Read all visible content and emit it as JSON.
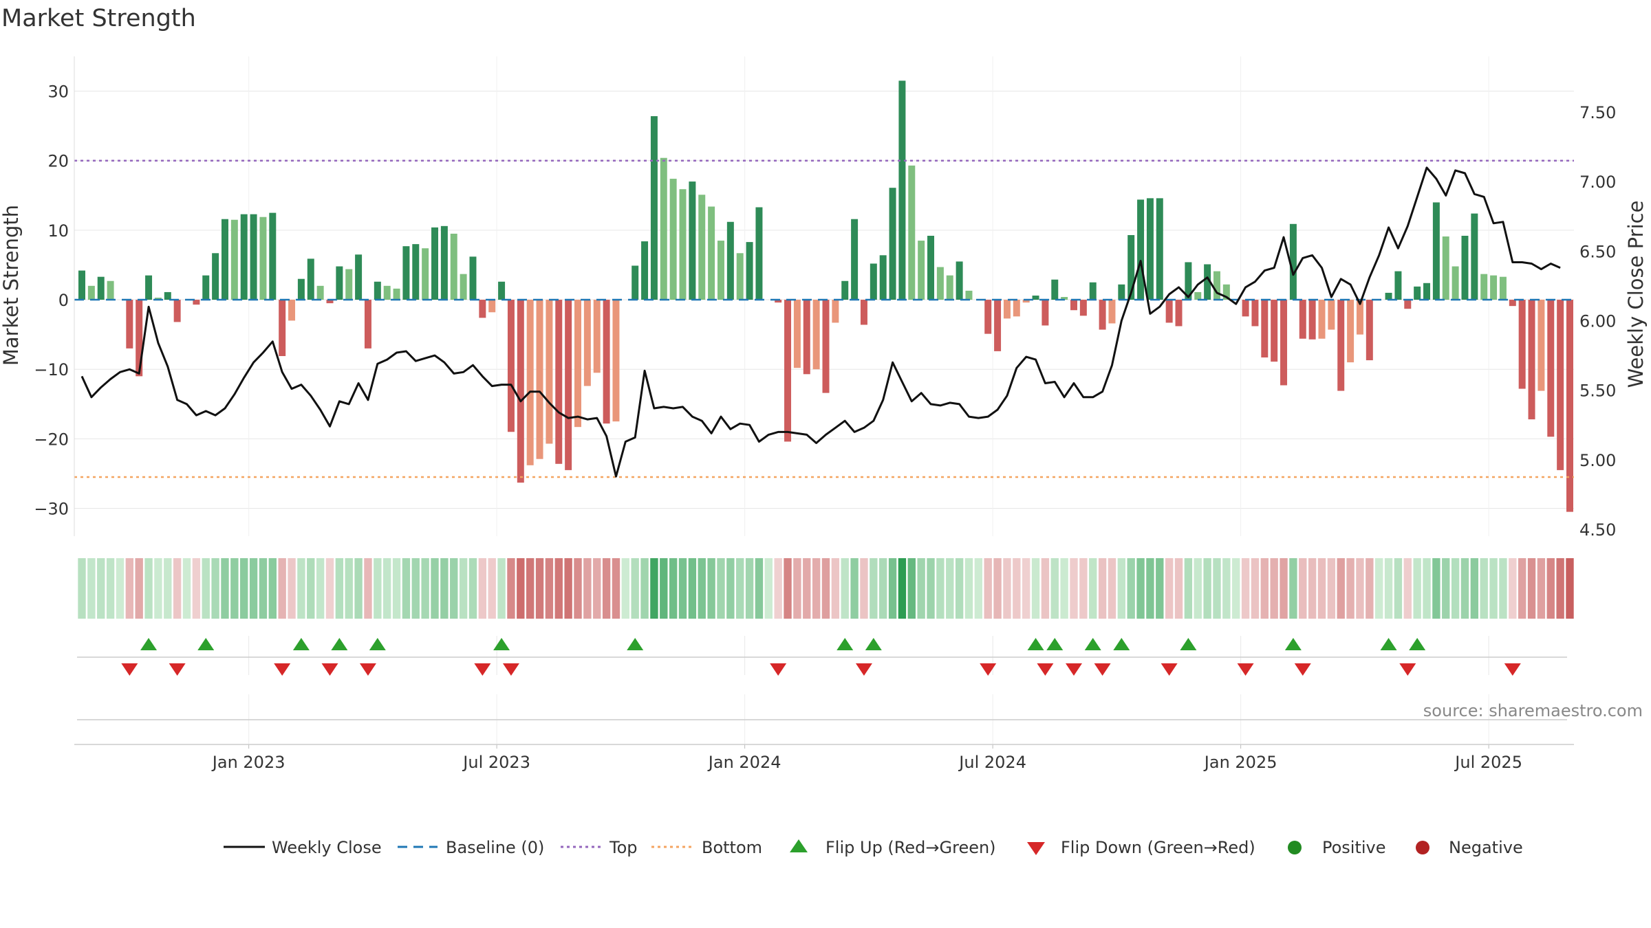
{
  "chart_data": {
    "type": "bar",
    "title": "Market Strength",
    "ylabel_left": "Market Strength",
    "ylabel_right": "Weekly Close Price",
    "y_left_range": [
      -34,
      35
    ],
    "y_left_ticks": [
      30,
      20,
      10,
      0,
      -10,
      -20,
      -30
    ],
    "y_left_tick_labels": [
      "30",
      "20",
      "10",
      "0",
      "−10",
      "−20",
      "−30"
    ],
    "y_right_range": [
      4.5,
      7.9
    ],
    "y_right_ticks": [
      7.5,
      7.0,
      6.5,
      6.0,
      5.5,
      5.0,
      4.5
    ],
    "y_right_tick_labels": [
      "7.50",
      "7.00",
      "6.50",
      "6.00",
      "5.50",
      "5.00",
      "4.50"
    ],
    "x_ticks": [
      {
        "week": 17.5,
        "label": "Jan 2023"
      },
      {
        "week": 43.5,
        "label": "Jul 2023"
      },
      {
        "week": 69.5,
        "label": "Jan 2024"
      },
      {
        "week": 95.5,
        "label": "Jul 2024"
      },
      {
        "week": 121.5,
        "label": "Jan 2025"
      },
      {
        "week": 147.5,
        "label": "Jul 2025"
      }
    ],
    "top_line": 20,
    "bottom_line": -25.5,
    "baseline": 0,
    "strength": [
      4.2,
      2,
      3.3,
      2.7,
      0,
      -7,
      -11,
      3.5,
      0.3,
      1.1,
      -3.2,
      0,
      -0.7,
      3.5,
      6.7,
      11.6,
      11.5,
      12.3,
      12.3,
      11.9,
      12.5,
      -8.1,
      -3,
      3,
      5.9,
      2,
      -0.5,
      4.8,
      4.4,
      6.5,
      -7,
      2.6,
      2,
      1.6,
      7.7,
      8,
      7.4,
      10.4,
      10.6,
      9.5,
      3.7,
      6.2,
      -2.6,
      -1.8,
      2.6,
      -19,
      -26.3,
      -23.8,
      -22.9,
      -20.7,
      -23.6,
      -24.5,
      -18.3,
      -12.4,
      -10.5,
      -17.8,
      -17.5,
      0,
      4.9,
      8.4,
      26.4,
      20.4,
      17.4,
      15.9,
      17,
      15.1,
      13.4,
      8.5,
      11.2,
      6.7,
      8.3,
      13.3,
      0,
      -0.4,
      -20.4,
      -9.8,
      -10.7,
      -10,
      -13.4,
      -3.3,
      2.7,
      11.6,
      -3.6,
      5.2,
      6.4,
      16.1,
      31.5,
      19.3,
      8.5,
      9.2,
      4.7,
      3.5,
      5.5,
      1.3,
      0,
      -4.9,
      -7.4,
      -2.7,
      -2.4,
      -0.4,
      0.6,
      -3.7,
      2.9,
      0.4,
      -1.5,
      -2.3,
      2.5,
      -4.3,
      -3.4,
      2.2,
      9.3,
      14.4,
      14.6,
      14.6,
      -3.3,
      -3.8,
      5.4,
      1.1,
      5.1,
      4.1,
      2.2,
      0,
      -2.4,
      -3.8,
      -8.3,
      -8.9,
      -12.3,
      10.9,
      -5.6,
      -5.7,
      -5.6,
      -4.3,
      -13.1,
      -9,
      -5,
      -8.7,
      0,
      1,
      4.1,
      -1.3,
      1.9,
      2.4,
      14,
      9.1,
      4.8,
      9.2,
      12.4,
      3.7,
      3.5,
      3.3,
      -0.9,
      -12.8,
      -17.2,
      -13.1,
      -19.7,
      -24.5,
      -30.5
    ],
    "weekly_close": [
      5.6,
      5.45,
      5.52,
      5.58,
      5.63,
      5.65,
      5.62,
      6.1,
      5.84,
      5.67,
      5.43,
      5.4,
      5.32,
      5.35,
      5.32,
      5.37,
      5.47,
      5.59,
      5.7,
      5.77,
      5.85,
      5.63,
      5.51,
      5.54,
      5.46,
      5.36,
      5.24,
      5.42,
      5.4,
      5.55,
      5.43,
      5.69,
      5.72,
      5.77,
      5.78,
      5.71,
      5.73,
      5.75,
      5.7,
      5.62,
      5.63,
      5.68,
      5.6,
      5.53,
      5.54,
      5.54,
      5.42,
      5.49,
      5.49,
      5.41,
      5.34,
      5.3,
      5.31,
      5.29,
      5.3,
      5.17,
      4.88,
      5.13,
      5.16,
      5.64,
      5.37,
      5.38,
      5.37,
      5.38,
      5.31,
      5.28,
      5.19,
      5.31,
      5.22,
      5.26,
      5.25,
      5.13,
      5.18,
      5.2,
      5.2,
      5.19,
      5.18,
      5.12,
      5.18,
      5.23,
      5.28,
      5.2,
      5.23,
      5.28,
      5.43,
      5.7,
      5.56,
      5.42,
      5.48,
      5.4,
      5.39,
      5.41,
      5.4,
      5.31,
      5.3,
      5.31,
      5.36,
      5.46,
      5.66,
      5.74,
      5.72,
      5.55,
      5.56,
      5.45,
      5.55,
      5.45,
      5.45,
      5.49,
      5.68,
      6,
      6.2,
      6.43,
      6.05,
      6.1,
      6.19,
      6.24,
      6.17,
      6.26,
      6.31,
      6.2,
      6.17,
      6.12,
      6.24,
      6.28,
      6.36,
      6.38,
      6.6,
      6.33,
      6.45,
      6.47,
      6.38,
      6.17,
      6.3,
      6.26,
      6.12,
      6.31,
      6.47,
      6.67,
      6.52,
      6.68,
      6.89,
      7.1,
      7.02,
      6.9,
      7.08,
      7.06,
      6.91,
      6.89,
      6.7,
      6.71,
      6.42,
      6.42,
      6.41,
      6.37,
      6.41,
      6.38
    ]
  },
  "legend": {
    "weekly_close": "Weekly Close",
    "baseline": "Baseline (0)",
    "top": "Top",
    "bottom": "Bottom",
    "flip_up": "Flip Up (Red→Green)",
    "flip_down": "Flip Down (Green→Red)",
    "positive": "Positive",
    "negative": "Negative"
  },
  "source": "source: sharemaestro.com",
  "colors": {
    "pos_strong": "#2e8b57",
    "pos_light": "#7fbf7f",
    "neg_strong": "#cd5c5c",
    "neg_light": "#e9967a",
    "price_line": "#111111",
    "top_line": "#9467bd",
    "bottom_line": "#f4a460",
    "baseline": "#1f77b4",
    "flip_up": "#2ca02c",
    "flip_down": "#d62728",
    "positive_dot": "#228b22",
    "negative_dot": "#b22222",
    "grid": "#e6e6e6"
  }
}
